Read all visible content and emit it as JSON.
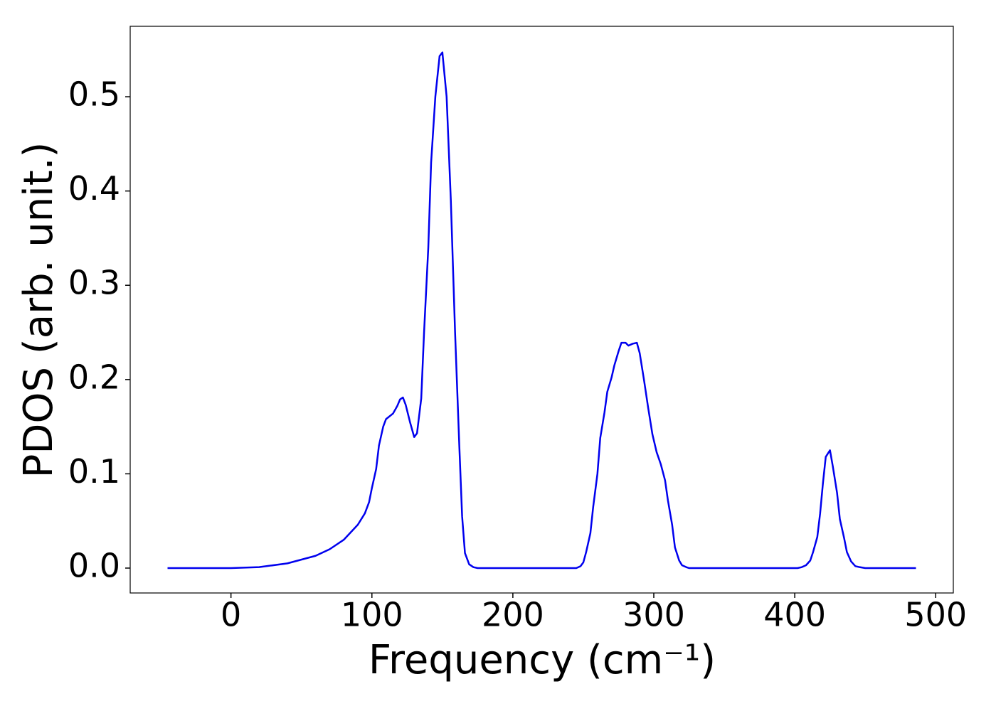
{
  "chart_data": {
    "type": "line",
    "xlabel": "Frequency (cm⁻¹)",
    "ylabel": "PDOS (arb. unit.)",
    "x": [
      -45,
      0,
      20,
      40,
      60,
      70,
      80,
      90,
      95,
      98,
      100,
      103,
      105,
      108,
      110,
      115,
      118,
      120,
      122,
      124,
      127,
      130,
      132,
      135,
      137,
      140,
      142,
      145,
      148,
      150,
      153,
      156,
      159,
      162,
      164,
      166,
      169,
      172,
      175,
      245,
      248,
      250,
      252,
      255,
      257,
      260,
      262,
      265,
      267,
      270,
      272,
      275,
      277,
      280,
      282,
      285,
      288,
      290,
      293,
      296,
      299,
      302,
      305,
      308,
      310,
      313,
      315,
      318,
      320,
      323,
      325,
      402,
      405,
      408,
      411,
      413,
      416,
      418,
      420,
      422,
      425,
      427,
      430,
      432,
      435,
      437,
      440,
      443,
      446,
      450,
      486
    ],
    "series": [
      {
        "color": "#0000ee",
        "values": [
          0,
          0,
          0.001,
          0.005,
          0.013,
          0.02,
          0.03,
          0.046,
          0.058,
          0.07,
          0.085,
          0.105,
          0.13,
          0.15,
          0.158,
          0.164,
          0.172,
          0.179,
          0.181,
          0.173,
          0.155,
          0.139,
          0.143,
          0.18,
          0.25,
          0.34,
          0.43,
          0.5,
          0.543,
          0.547,
          0.5,
          0.39,
          0.25,
          0.13,
          0.055,
          0.016,
          0.004,
          0.001,
          0,
          0,
          0.002,
          0.006,
          0.017,
          0.037,
          0.065,
          0.1,
          0.138,
          0.165,
          0.187,
          0.202,
          0.215,
          0.23,
          0.239,
          0.239,
          0.236,
          0.238,
          0.239,
          0.228,
          0.2,
          0.17,
          0.142,
          0.123,
          0.11,
          0.093,
          0.072,
          0.046,
          0.022,
          0.008,
          0.003,
          0.001,
          0,
          0,
          0.001,
          0.003,
          0.008,
          0.017,
          0.033,
          0.058,
          0.09,
          0.118,
          0.125,
          0.108,
          0.08,
          0.052,
          0.032,
          0.017,
          0.007,
          0.002,
          0.001,
          0,
          0
        ]
      }
    ],
    "xlim": [
      -71.5,
      512.5
    ],
    "ylim": [
      -0.0264,
      0.5747
    ],
    "xticks": [
      0,
      100,
      200,
      300,
      400,
      500
    ],
    "yticks": [
      {
        "value": 0,
        "label": "0.0"
      },
      0.1,
      0.2,
      0.3,
      0.4,
      0.5
    ],
    "grid": false
  }
}
